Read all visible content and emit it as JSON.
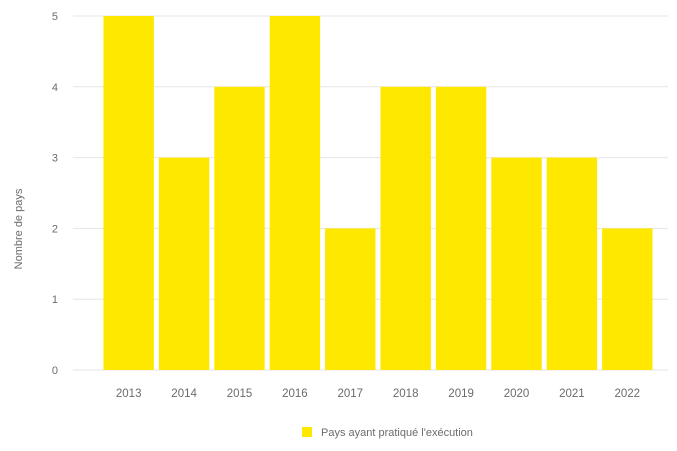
{
  "chart_data": {
    "type": "bar",
    "categories": [
      "2013",
      "2014",
      "2015",
      "2016",
      "2017",
      "2018",
      "2019",
      "2020",
      "2021",
      "2022"
    ],
    "series": [
      {
        "name": "Pays ayant pratiqué l'exécution",
        "values": [
          5,
          3,
          4,
          5,
          2,
          4,
          4,
          3,
          3,
          2
        ]
      }
    ],
    "ylabel": "Nombre de pays",
    "xlabel": "",
    "ylim": [
      0,
      5
    ],
    "yticks": [
      0,
      1,
      2,
      3,
      4,
      5
    ],
    "grid": true,
    "legend_position": "bottom-center",
    "colors": {
      "bar": "#FFE800",
      "grid": "#e6e6e6",
      "text": "#6b6b6b"
    }
  }
}
